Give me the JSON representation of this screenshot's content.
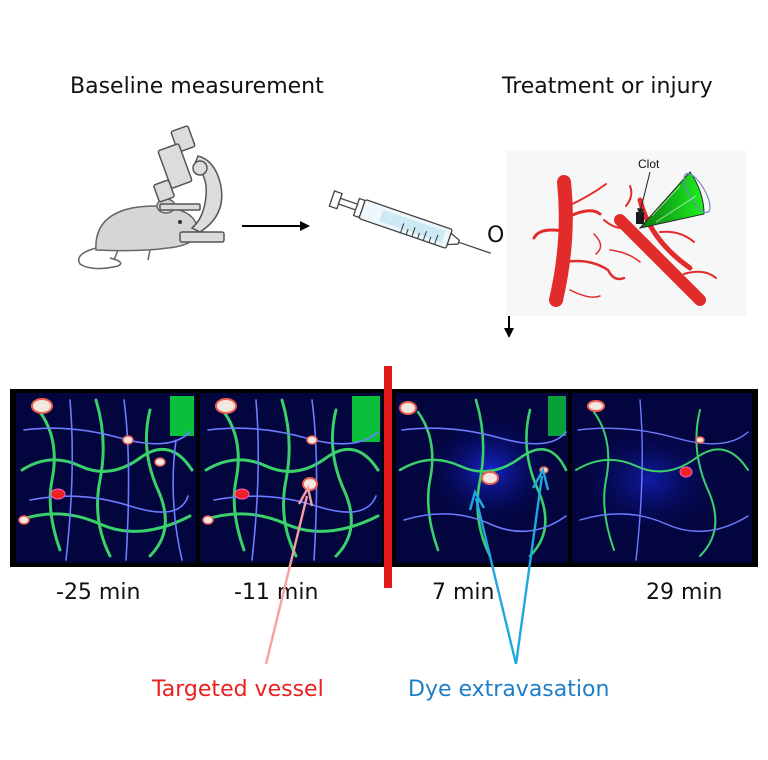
{
  "headings": {
    "baseline": "Baseline measurement",
    "treatment": "Treatment or injury"
  },
  "or_label": "OR",
  "clot_label": "Clot",
  "timepoints": [
    "-25 min",
    "-11 min",
    "7 min",
    "29 min"
  ],
  "annotations": {
    "targeted_vessel": "Targeted vessel",
    "dye_extravasation": "Dye extravasation"
  },
  "colors": {
    "targeted_vessel_text": "#e8211f",
    "targeted_vessel_arrow": "#f4a0a4",
    "dye_text": "#1e7fc8",
    "dye_arrow": "#1fa8e0",
    "divider": "#e41a1a",
    "vessel_red": "#e51b1b",
    "clot_green": "#19e01a",
    "image_bg": "#03053f"
  }
}
